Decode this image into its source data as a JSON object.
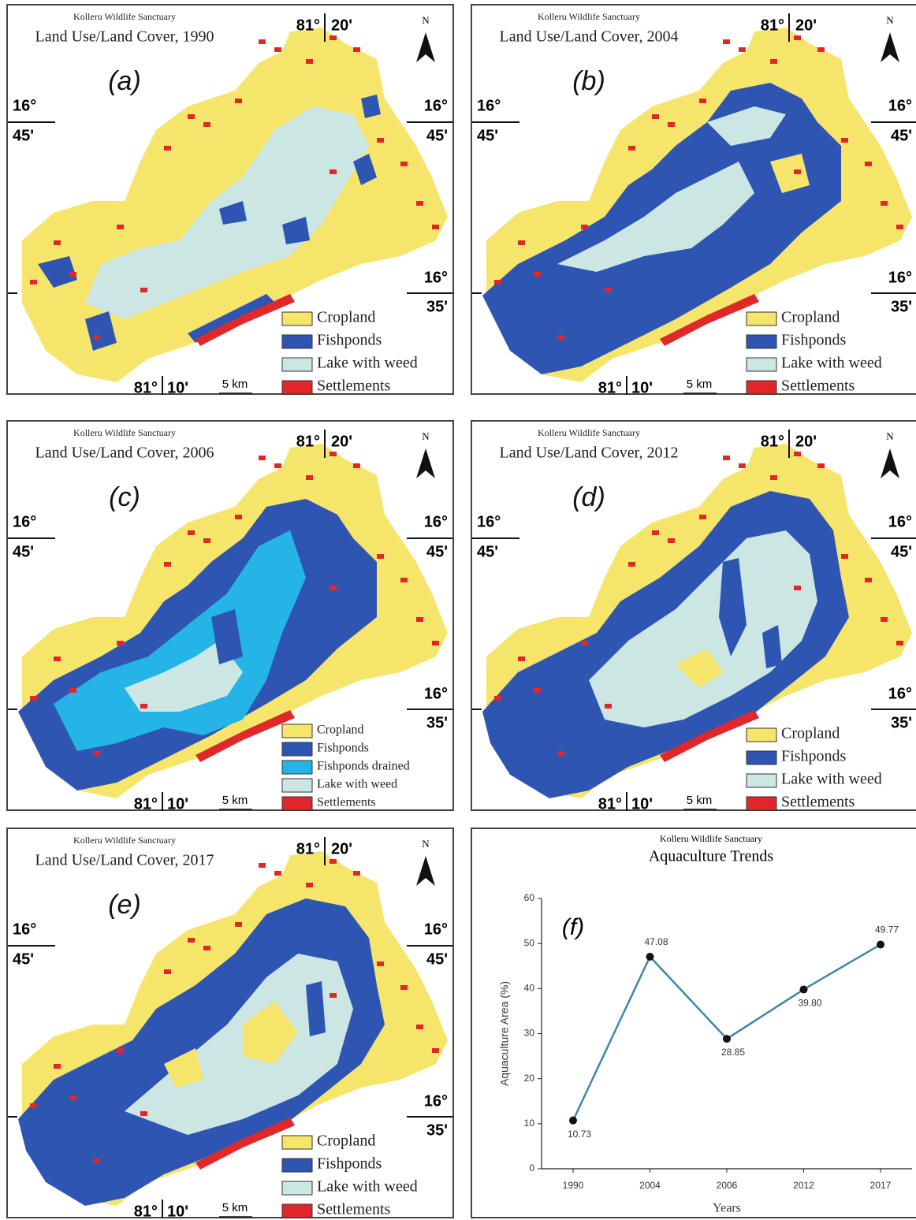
{
  "graticule": {
    "lon_deg": "81°",
    "lon_min_top": "20'",
    "lon_min_bottom": "10'",
    "lat_deg": "16°",
    "lat_min_top": "45'",
    "lat_min_bottom": "35'",
    "north": "N",
    "scale": "5 km"
  },
  "maps": [
    {
      "sanctuary": "Kolleru Wildlife Sanctuary",
      "title": "Land Use/Land Cover, 1990",
      "panel": "(a)",
      "legend": [
        {
          "name": "Cropland",
          "color": "#f6e56b"
        },
        {
          "name": "Fishponds",
          "color": "#2f55b2"
        },
        {
          "name": "Lake with weed",
          "color": "#cce6e4"
        },
        {
          "name": "Settlements",
          "color": "#e0282a"
        }
      ]
    },
    {
      "sanctuary": "Kolleru Wildlife Sanctuary",
      "title": "Land Use/Land Cover, 2004",
      "panel": "(b)",
      "legend": [
        {
          "name": "Cropland",
          "color": "#f6e56b"
        },
        {
          "name": "Fishponds",
          "color": "#2f55b2"
        },
        {
          "name": "Lake with weed",
          "color": "#cce6e4"
        },
        {
          "name": "Settlements",
          "color": "#e0282a"
        }
      ]
    },
    {
      "sanctuary": "Kolleru Wildlife Sanctuary",
      "title": "Land Use/Land Cover, 2006",
      "panel": "(c)",
      "legend": [
        {
          "name": "Cropland",
          "color": "#f6e56b"
        },
        {
          "name": "Fishponds",
          "color": "#2f55b2"
        },
        {
          "name": "Fishponds drained",
          "color": "#25b4e6"
        },
        {
          "name": "Lake with weed",
          "color": "#cce6e4"
        },
        {
          "name": "Settlements",
          "color": "#e0282a"
        }
      ]
    },
    {
      "sanctuary": "Kolleru Wildlife Sanctuary",
      "title": "Land Use/Land Cover, 2012",
      "panel": "(d)",
      "legend": [
        {
          "name": "Cropland",
          "color": "#f6e56b"
        },
        {
          "name": "Fishponds",
          "color": "#2f55b2"
        },
        {
          "name": "Lake with weed",
          "color": "#cce6e4"
        },
        {
          "name": "Settlements",
          "color": "#e0282a"
        }
      ]
    },
    {
      "sanctuary": "Kolleru Wildlife Sanctuary",
      "title": "Land Use/Land Cover, 2017",
      "panel": "(e)",
      "legend": [
        {
          "name": "Cropland",
          "color": "#f6e56b"
        },
        {
          "name": "Fishponds",
          "color": "#2f55b2"
        },
        {
          "name": "Lake with weed",
          "color": "#cce6e4"
        },
        {
          "name": "Settlements",
          "color": "#e0282a"
        }
      ]
    }
  ],
  "chart_data": {
    "type": "line",
    "subtitle": "Kolleru Wildlife Sanctuary",
    "title": "Aquaculture Trends",
    "panel": "(f)",
    "x_label": "Years",
    "y_label": "Aquaculture Area (%)",
    "categories": [
      "1990",
      "2004",
      "2006",
      "2012",
      "2017"
    ],
    "values": [
      10.73,
      47.08,
      28.85,
      39.8,
      49.77
    ],
    "value_labels": [
      "10.73",
      "47.08",
      "28.85",
      "39.80",
      "49.77"
    ],
    "color": "#3f86aa",
    "marker_color": "#111111",
    "ylim": [
      0,
      60
    ],
    "yticks": [
      0,
      10,
      20,
      30,
      40,
      50,
      60
    ]
  }
}
